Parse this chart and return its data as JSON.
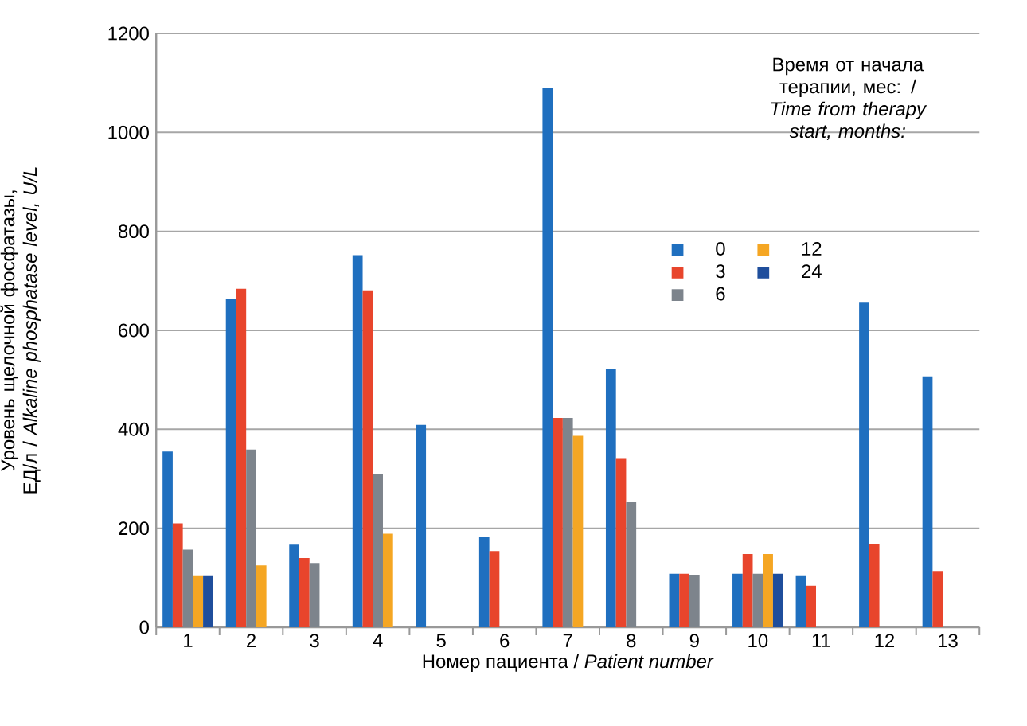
{
  "chart_data": {
    "type": "bar",
    "xlabel": "Номер пациента / *Patient number*",
    "ylabel": "Уровень щелочной фосфатазы, ЕД/л / *Alkaline phosphatase level, U/L*",
    "legend_title": "Время от начала терапии, мес: / *Time from therapy start, months:*",
    "categories": [
      "1",
      "2",
      "3",
      "4",
      "5",
      "6",
      "7",
      "8",
      "9",
      "10",
      "11",
      "12",
      "13"
    ],
    "series": [
      {
        "name": "0",
        "color": "#1f6fbf",
        "values": [
          355,
          663,
          167,
          752,
          409,
          182,
          1090,
          521,
          108,
          108,
          105,
          656,
          507
        ]
      },
      {
        "name": "3",
        "color": "#e8452c",
        "values": [
          210,
          684,
          140,
          681,
          null,
          154,
          423,
          342,
          108,
          148,
          84,
          169,
          114
        ]
      },
      {
        "name": "6",
        "color": "#7d848c",
        "values": [
          157,
          359,
          130,
          309,
          null,
          null,
          423,
          253,
          106,
          108,
          null,
          null,
          null
        ]
      },
      {
        "name": "12",
        "color": "#f5a623",
        "values": [
          105,
          125,
          null,
          189,
          null,
          null,
          387,
          null,
          null,
          148,
          null,
          null,
          null
        ]
      },
      {
        "name": "24",
        "color": "#1f4e9c",
        "values": [
          105,
          null,
          null,
          null,
          null,
          null,
          null,
          null,
          null,
          108,
          null,
          null,
          null
        ]
      }
    ],
    "ylim": [
      0,
      1200
    ],
    "yticks": [
      0,
      200,
      400,
      600,
      800,
      1000,
      1200
    ],
    "grid": "y",
    "legend": "top right"
  }
}
